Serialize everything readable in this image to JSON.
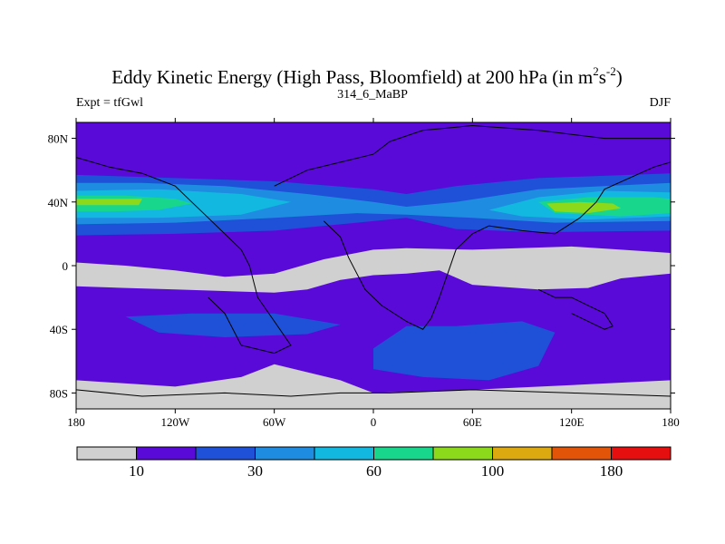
{
  "chart_data": {
    "type": "heatmap",
    "title": "Eddy Kinetic Energy (High Pass, Bloomfield) at 200 hPa (in m",
    "title_unit_sup1": "2",
    "title_unit_mid": "s",
    "title_unit_sup2": "-2",
    "title_unit_end": ")",
    "left_subtitle": "Expt = tfGwl",
    "center_subtitle": "314_6_MaBP",
    "right_subtitle": "DJF",
    "xlim": [
      -180,
      180
    ],
    "ylim": [
      -90,
      90
    ],
    "x_ticks": [
      {
        "value": -180,
        "label": "180"
      },
      {
        "value": -120,
        "label": "120W"
      },
      {
        "value": -60,
        "label": "60W"
      },
      {
        "value": 0,
        "label": "0"
      },
      {
        "value": 60,
        "label": "60E"
      },
      {
        "value": 120,
        "label": "120E"
      },
      {
        "value": 180,
        "label": "180"
      }
    ],
    "y_ticks": [
      {
        "value": 80,
        "label": "80N"
      },
      {
        "value": 40,
        "label": "40N"
      },
      {
        "value": 0,
        "label": "0"
      },
      {
        "value": -40,
        "label": "40S"
      },
      {
        "value": -80,
        "label": "80S"
      }
    ],
    "colorbar": {
      "colors": [
        "#d0d0d0",
        "#5a0ad8",
        "#1f50d8",
        "#1e8ce0",
        "#12b8e0",
        "#18d68c",
        "#8cd81a",
        "#dcaa10",
        "#e25408",
        "#e60f0f"
      ],
      "labels": [
        {
          "after_box": 1,
          "text": "10"
        },
        {
          "after_box": 3,
          "text": "30"
        },
        {
          "after_box": 5,
          "text": "60"
        },
        {
          "after_box": 7,
          "text": "100"
        },
        {
          "after_box": 9,
          "text": "180"
        }
      ]
    },
    "regions": [
      {
        "name": "n-subtropic-jet",
        "level": 2,
        "points": [
          [
            -180,
            57
          ],
          [
            -120,
            55
          ],
          [
            -60,
            53
          ],
          [
            0,
            48
          ],
          [
            20,
            45
          ],
          [
            50,
            50
          ],
          [
            100,
            55
          ],
          [
            180,
            58
          ],
          [
            180,
            22
          ],
          [
            100,
            21
          ],
          [
            50,
            23
          ],
          [
            20,
            30
          ],
          [
            -10,
            27
          ],
          [
            -60,
            22
          ],
          [
            -120,
            20
          ],
          [
            -180,
            19
          ]
        ]
      },
      {
        "name": "n-jet-core",
        "level": 3,
        "points": [
          [
            -180,
            52
          ],
          [
            -140,
            52
          ],
          [
            -90,
            50
          ],
          [
            -40,
            45
          ],
          [
            0,
            40
          ],
          [
            20,
            37
          ],
          [
            50,
            40
          ],
          [
            100,
            48
          ],
          [
            180,
            52
          ],
          [
            180,
            28
          ],
          [
            110,
            27
          ],
          [
            60,
            30
          ],
          [
            20,
            32
          ],
          [
            -10,
            33
          ],
          [
            -60,
            30
          ],
          [
            -120,
            27
          ],
          [
            -180,
            26
          ]
        ]
      },
      {
        "name": "n-jet-inner",
        "level": 4,
        "points": [
          [
            -180,
            47
          ],
          [
            -130,
            48
          ],
          [
            -80,
            45
          ],
          [
            -50,
            40
          ],
          [
            -80,
            32
          ],
          [
            -130,
            30
          ],
          [
            -180,
            30
          ]
        ]
      },
      {
        "name": "n-jet-inner-east",
        "level": 4,
        "points": [
          [
            70,
            35
          ],
          [
            100,
            43
          ],
          [
            140,
            47
          ],
          [
            180,
            46
          ],
          [
            180,
            31
          ],
          [
            130,
            29
          ],
          [
            90,
            31
          ]
        ]
      },
      {
        "name": "n-jet-green-west",
        "level": 5,
        "points": [
          [
            -180,
            44
          ],
          [
            -150,
            44
          ],
          [
            -120,
            42
          ],
          [
            -110,
            39
          ],
          [
            -130,
            35
          ],
          [
            -160,
            34
          ],
          [
            -180,
            34
          ]
        ]
      },
      {
        "name": "n-jet-green-east",
        "level": 5,
        "points": [
          [
            100,
            40
          ],
          [
            130,
            43
          ],
          [
            170,
            43
          ],
          [
            180,
            42
          ],
          [
            180,
            33
          ],
          [
            150,
            31
          ],
          [
            110,
            33
          ]
        ]
      },
      {
        "name": "lime-core-west",
        "level": 6,
        "points": [
          [
            -180,
            42
          ],
          [
            -140,
            42
          ],
          [
            -142,
            38
          ],
          [
            -180,
            38
          ]
        ]
      },
      {
        "name": "lime-core-east",
        "level": 6,
        "points": [
          [
            105,
            39
          ],
          [
            125,
            40
          ],
          [
            145,
            39
          ],
          [
            150,
            36
          ],
          [
            130,
            33
          ],
          [
            110,
            34
          ]
        ]
      },
      {
        "name": "low-lat-grey",
        "level": 0,
        "points": [
          [
            -180,
            -13
          ],
          [
            -150,
            -14
          ],
          [
            -120,
            -15
          ],
          [
            -60,
            -17
          ],
          [
            -40,
            -15
          ],
          [
            -20,
            -9
          ],
          [
            0,
            -6
          ],
          [
            20,
            -5
          ],
          [
            40,
            -3
          ],
          [
            60,
            -12
          ],
          [
            100,
            -15
          ],
          [
            130,
            -14
          ],
          [
            150,
            -8
          ],
          [
            180,
            -5
          ],
          [
            180,
            8
          ],
          [
            150,
            10
          ],
          [
            120,
            12
          ],
          [
            60,
            10
          ],
          [
            20,
            11
          ],
          [
            0,
            10
          ],
          [
            -30,
            4
          ],
          [
            -60,
            -5
          ],
          [
            -90,
            -7
          ],
          [
            -120,
            -3
          ],
          [
            -150,
            0
          ],
          [
            -180,
            2
          ]
        ]
      },
      {
        "name": "s-pacific-blue",
        "level": 2,
        "points": [
          [
            -150,
            -32
          ],
          [
            -110,
            -30
          ],
          [
            -60,
            -30
          ],
          [
            -20,
            -37
          ],
          [
            -40,
            -43
          ],
          [
            -90,
            -45
          ],
          [
            -130,
            -42
          ]
        ]
      },
      {
        "name": "s-indian-blue",
        "level": 2,
        "points": [
          [
            0,
            -52
          ],
          [
            20,
            -38
          ],
          [
            50,
            -38
          ],
          [
            90,
            -35
          ],
          [
            110,
            -42
          ],
          [
            100,
            -63
          ],
          [
            70,
            -72
          ],
          [
            30,
            -70
          ],
          [
            0,
            -65
          ]
        ]
      },
      {
        "name": "antarctic-grey",
        "level": 0,
        "points": [
          [
            -180,
            -72
          ],
          [
            -120,
            -76
          ],
          [
            -80,
            -70
          ],
          [
            -60,
            -62
          ],
          [
            -20,
            -72
          ],
          [
            0,
            -80
          ],
          [
            60,
            -78
          ],
          [
            120,
            -75
          ],
          [
            180,
            -72
          ],
          [
            180,
            -90
          ],
          [
            -180,
            -90
          ]
        ]
      }
    ],
    "coastlines": [
      [
        [
          -30,
          28
        ],
        [
          -20,
          18
        ],
        [
          -15,
          5
        ],
        [
          -5,
          -15
        ],
        [
          5,
          -25
        ],
        [
          20,
          -35
        ],
        [
          30,
          -40
        ],
        [
          35,
          -33
        ],
        [
          40,
          -20
        ],
        [
          45,
          -5
        ],
        [
          50,
          10
        ],
        [
          60,
          20
        ],
        [
          70,
          25
        ],
        [
          90,
          22
        ],
        [
          110,
          20
        ],
        [
          125,
          30
        ],
        [
          135,
          40
        ],
        [
          140,
          48
        ],
        [
          155,
          55
        ],
        [
          170,
          62
        ],
        [
          180,
          65
        ]
      ],
      [
        [
          -180,
          68
        ],
        [
          -160,
          62
        ],
        [
          -140,
          58
        ],
        [
          -120,
          50
        ],
        [
          -110,
          40
        ],
        [
          -100,
          30
        ],
        [
          -90,
          20
        ],
        [
          -80,
          10
        ],
        [
          -75,
          0
        ],
        [
          -70,
          -20
        ],
        [
          -60,
          -35
        ],
        [
          -50,
          -50
        ],
        [
          -60,
          -55
        ],
        [
          -80,
          -50
        ],
        [
          -90,
          -30
        ],
        [
          -100,
          -20
        ]
      ],
      [
        [
          -60,
          50
        ],
        [
          -40,
          60
        ],
        [
          -20,
          65
        ],
        [
          0,
          70
        ],
        [
          10,
          78
        ],
        [
          30,
          85
        ],
        [
          60,
          88
        ],
        [
          100,
          85
        ],
        [
          140,
          80
        ],
        [
          180,
          80
        ]
      ],
      [
        [
          -180,
          -78
        ],
        [
          -140,
          -82
        ],
        [
          -90,
          -80
        ],
        [
          -50,
          -82
        ],
        [
          -20,
          -80
        ],
        [
          10,
          -80
        ],
        [
          60,
          -78
        ],
        [
          120,
          -80
        ],
        [
          180,
          -82
        ]
      ],
      [
        [
          100,
          -15
        ],
        [
          110,
          -20
        ],
        [
          120,
          -20
        ],
        [
          130,
          -25
        ],
        [
          140,
          -30
        ],
        [
          145,
          -38
        ],
        [
          140,
          -40
        ],
        [
          130,
          -35
        ],
        [
          120,
          -30
        ]
      ]
    ]
  }
}
